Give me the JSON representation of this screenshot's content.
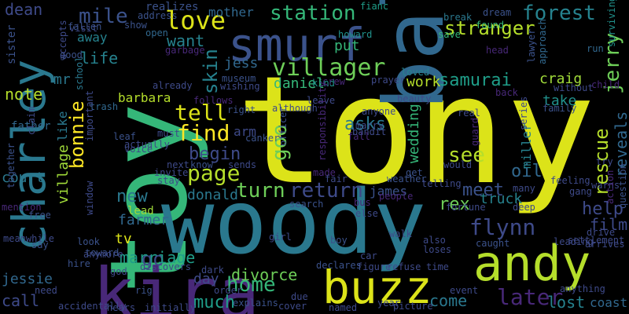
{
  "word_cloud": {
    "words": [
      {
        "text": "tony",
        "color": "#dce319"
      },
      {
        "text": "toy",
        "color": "#35b779"
      },
      {
        "text": "woody",
        "color": "#2a788e"
      },
      {
        "text": "bala",
        "color": "#31688e"
      },
      {
        "text": "smurf",
        "color": "#3b528b"
      },
      {
        "text": "charley",
        "color": "#2a788e"
      },
      {
        "text": "kira",
        "color": "#482878"
      },
      {
        "text": "andy",
        "color": "#b5de2b"
      },
      {
        "text": "buzz",
        "color": "#dce319"
      },
      {
        "text": "villager",
        "color": "#6ece58"
      },
      {
        "text": "love",
        "color": "#dce319"
      },
      {
        "text": "tell",
        "color": "#dce319"
      },
      {
        "text": "page",
        "color": "#b5de2b"
      },
      {
        "text": "find",
        "color": "#fde725"
      },
      {
        "text": "return",
        "color": "#3e4a89"
      },
      {
        "text": "turn",
        "color": "#6ece58"
      },
      {
        "text": "station",
        "color": "#35b779"
      },
      {
        "text": "stranger",
        "color": "#b5de2b"
      },
      {
        "text": "forest",
        "color": "#26828e"
      },
      {
        "text": "jerry",
        "color": "#6ece58"
      },
      {
        "text": "samurai",
        "color": "#1f9e89"
      },
      {
        "text": "rescue",
        "color": "#b5de2b"
      },
      {
        "text": "flynn",
        "color": "#3e4a89"
      },
      {
        "text": "later",
        "color": "#482878"
      },
      {
        "text": "home",
        "color": "#35b779"
      },
      {
        "text": "divorce",
        "color": "#6ece58"
      },
      {
        "text": "go",
        "color": "#3e4a89"
      },
      {
        "text": "goo",
        "color": "#6ece58"
      },
      {
        "text": "see",
        "color": "#b5de2b"
      },
      {
        "text": "meet",
        "color": "#3b528b"
      },
      {
        "text": "mile",
        "color": "#3b528b"
      },
      {
        "text": "skin",
        "color": "#26828e"
      },
      {
        "text": "begin",
        "color": "#3e4a89"
      },
      {
        "text": "new",
        "color": "#2a788e"
      },
      {
        "text": "bonnie",
        "color": "#fde725"
      },
      {
        "text": "village",
        "color": "#a0da39"
      },
      {
        "text": "marriage",
        "color": "#1f9e89"
      },
      {
        "text": "help",
        "color": "#3e4a89"
      },
      {
        "text": "film",
        "color": "#3e4a89"
      },
      {
        "text": "coast",
        "color": "#31688e"
      },
      {
        "text": "lost",
        "color": "#26828e"
      },
      {
        "text": "come",
        "color": "#2a788e"
      },
      {
        "text": "much",
        "color": "#1f9e89"
      },
      {
        "text": "call",
        "color": "#3e4a89"
      },
      {
        "text": "jessie",
        "color": "#31688e"
      },
      {
        "text": "day",
        "color": "#3e4a89"
      },
      {
        "text": "tv",
        "color": "#dce319"
      },
      {
        "text": "lead",
        "color": "#a0da39"
      },
      {
        "text": "farmer",
        "color": "#31688e"
      },
      {
        "text": "donald",
        "color": "#2a788e"
      },
      {
        "text": "work",
        "color": "#b5de2b"
      },
      {
        "text": "wedding",
        "color": "#35b779"
      },
      {
        "text": "asks",
        "color": "#2a788e"
      },
      {
        "text": "daniel",
        "color": "#35b779"
      },
      {
        "text": "jess",
        "color": "#31688e"
      },
      {
        "text": "put",
        "color": "#35b779"
      },
      {
        "text": "want",
        "color": "#26828e"
      },
      {
        "text": "mother",
        "color": "#31688e"
      },
      {
        "text": "note",
        "color": "#b5de2b"
      },
      {
        "text": "life",
        "color": "#26828e"
      },
      {
        "text": "mr",
        "color": "#2a788e"
      },
      {
        "text": "barbara",
        "color": "#b5de2b"
      },
      {
        "text": "dean",
        "color": "#3e4a89"
      },
      {
        "text": "craig",
        "color": "#a0da39"
      },
      {
        "text": "take",
        "color": "#21918c"
      },
      {
        "text": "reveals",
        "color": "#31688e"
      },
      {
        "text": "oil",
        "color": "#31688e"
      },
      {
        "text": "miller",
        "color": "#26828e"
      },
      {
        "text": "rex",
        "color": "#6ece58"
      },
      {
        "text": "james",
        "color": "#3b528b"
      },
      {
        "text": "truck",
        "color": "#26828e"
      },
      {
        "text": "realizes",
        "color": "#3b528b"
      },
      {
        "text": "away",
        "color": "#26828e"
      },
      {
        "text": "father",
        "color": "#31688e"
      },
      {
        "text": "court",
        "color": "#2a788e"
      },
      {
        "text": "like",
        "color": "#2a788e"
      },
      {
        "text": "sister",
        "color": "#3b528b"
      },
      {
        "text": "arm",
        "color": "#3e4a89"
      },
      {
        "text": "fianc",
        "color": "#1f9e89"
      },
      {
        "text": "found",
        "color": "#35b779"
      },
      {
        "text": "save",
        "color": "#35b779"
      },
      {
        "text": "surviving",
        "color": "#21918c"
      },
      {
        "text": "dream",
        "color": "#3b528b"
      },
      {
        "text": "break",
        "color": "#2a788e"
      },
      {
        "text": "address",
        "color": "#3b528b"
      },
      {
        "text": "visit",
        "color": "#3e4a89"
      },
      {
        "text": "fallen",
        "color": "#3b528b"
      },
      {
        "text": "show",
        "color": "#3b528b"
      },
      {
        "text": "open",
        "color": "#31688e"
      },
      {
        "text": "howard",
        "color": "#21918c"
      },
      {
        "text": "head",
        "color": "#482878"
      },
      {
        "text": "run",
        "color": "#31688e"
      },
      {
        "text": "lawyer",
        "color": "#3b528b"
      },
      {
        "text": "approach",
        "color": "#31688e"
      },
      {
        "text": "garbage",
        "color": "#482878"
      },
      {
        "text": "museum",
        "color": "#3b528b"
      },
      {
        "text": "wishing",
        "color": "#3e4a89"
      },
      {
        "text": "prayer",
        "color": "#3e4a89"
      },
      {
        "text": "loved",
        "color": "#26828e"
      },
      {
        "text": "beauty",
        "color": "#3e4a89"
      },
      {
        "text": "kind",
        "color": "#21918c"
      },
      {
        "text": "crew",
        "color": "#482878"
      },
      {
        "text": "good",
        "color": "#3b528b"
      },
      {
        "text": "accepts",
        "color": "#3e4a89"
      },
      {
        "text": "school",
        "color": "#2a788e"
      },
      {
        "text": "already",
        "color": "#3e4a89"
      },
      {
        "text": "follows",
        "color": "#482878"
      },
      {
        "text": "trash",
        "color": "#31688e"
      },
      {
        "text": "child",
        "color": "#482878"
      },
      {
        "text": "without",
        "color": "#3e4a89"
      },
      {
        "text": "family",
        "color": "#3b528b"
      },
      {
        "text": "back",
        "color": "#482878"
      },
      {
        "text": "together",
        "color": "#3b528b"
      },
      {
        "text": "claim",
        "color": "#3e4a89"
      },
      {
        "text": "important",
        "color": "#3e4a89"
      },
      {
        "text": "leaf",
        "color": "#3b528b"
      },
      {
        "text": "actually",
        "color": "#3e4a89"
      },
      {
        "text": "voice",
        "color": "#3e4a89"
      },
      {
        "text": "must",
        "color": "#3e4a89"
      },
      {
        "text": "right",
        "color": "#3b528b"
      },
      {
        "text": "although",
        "color": "#3e4a89"
      },
      {
        "text": "leave",
        "color": "#3e4a89"
      },
      {
        "text": "anyone",
        "color": "#3e4a89"
      },
      {
        "text": "real",
        "color": "#3e4a89"
      },
      {
        "text": "fall",
        "color": "#482878"
      },
      {
        "text": "marry",
        "color": "#3e4a89"
      },
      {
        "text": "bandit",
        "color": "#3e4a89"
      },
      {
        "text": "responsibility",
        "color": "#482878"
      },
      {
        "text": "officer",
        "color": "#3b528b"
      },
      {
        "text": "canker",
        "color": "#3b528b"
      },
      {
        "text": "sends",
        "color": "#3e4a89"
      },
      {
        "text": "next",
        "color": "#3e4a89"
      },
      {
        "text": "know",
        "color": "#3b528b"
      },
      {
        "text": "invite",
        "color": "#3e4a89"
      },
      {
        "text": "stay",
        "color": "#3e4a89"
      },
      {
        "text": "get",
        "color": "#3b528b"
      },
      {
        "text": "made",
        "color": "#482878"
      },
      {
        "text": "would",
        "color": "#3e4a89"
      },
      {
        "text": "guard",
        "color": "#482878"
      },
      {
        "text": "series",
        "color": "#3e4a89"
      },
      {
        "text": "try",
        "color": "#3e4a89"
      },
      {
        "text": "warns",
        "color": "#3e4a89"
      },
      {
        "text": "question",
        "color": "#3b528b"
      },
      {
        "text": "action",
        "color": "#482878"
      },
      {
        "text": "feeling",
        "color": "#3e4a89"
      },
      {
        "text": "gang",
        "color": "#3e4a89"
      },
      {
        "text": "many",
        "color": "#3e4a89"
      },
      {
        "text": "weather",
        "color": "#3b528b"
      },
      {
        "text": "telling",
        "color": "#3e4a89"
      },
      {
        "text": "fair",
        "color": "#3e4a89"
      },
      {
        "text": "mention",
        "color": "#482878"
      },
      {
        "text": "window",
        "color": "#3e4a89"
      },
      {
        "text": "search",
        "color": "#3b528b"
      },
      {
        "text": "bus",
        "color": "#482878"
      },
      {
        "text": "people",
        "color": "#482878"
      },
      {
        "text": "fortune",
        "color": "#3e4a89"
      },
      {
        "text": "deep",
        "color": "#3e4a89"
      },
      {
        "text": "settlement",
        "color": "#3e4a89"
      },
      {
        "text": "free",
        "color": "#3b528b"
      },
      {
        "text": "else",
        "color": "#3e4a89"
      },
      {
        "text": "meanwhile",
        "color": "#3e4a89"
      },
      {
        "text": "say",
        "color": "#3b528b"
      },
      {
        "text": "look",
        "color": "#3b528b"
      },
      {
        "text": "toward",
        "color": "#3b528b"
      },
      {
        "text": "anymore",
        "color": "#3e4a89"
      },
      {
        "text": "girl",
        "color": "#3e4a89"
      },
      {
        "text": "boy",
        "color": "#3b528b"
      },
      {
        "text": "walk",
        "color": "#3e4a89"
      },
      {
        "text": "also",
        "color": "#3e4a89"
      },
      {
        "text": "loses",
        "color": "#3e4a89"
      },
      {
        "text": "caught",
        "color": "#3b528b"
      },
      {
        "text": "leading",
        "color": "#3e4a89"
      },
      {
        "text": "drive",
        "color": "#3e4a89"
      },
      {
        "text": "arrives",
        "color": "#3e4a89"
      },
      {
        "text": "hire",
        "color": "#3b528b"
      },
      {
        "text": "discovers",
        "color": "#3e4a89"
      },
      {
        "text": "god",
        "color": "#3e4a89"
      },
      {
        "text": "car",
        "color": "#3e4a89"
      },
      {
        "text": "figure",
        "color": "#3e4a89"
      },
      {
        "text": "refuse",
        "color": "#3e4a89"
      },
      {
        "text": "time",
        "color": "#3e4a89"
      },
      {
        "text": "dark",
        "color": "#3e4a89"
      },
      {
        "text": "declares",
        "color": "#3b528b"
      },
      {
        "text": "need",
        "color": "#3e4a89"
      },
      {
        "text": "rig",
        "color": "#3b528b"
      },
      {
        "text": "due",
        "color": "#3e4a89"
      },
      {
        "text": "order",
        "color": "#3e4a89"
      },
      {
        "text": "cover",
        "color": "#3e4a89"
      },
      {
        "text": "event",
        "color": "#3e4a89"
      },
      {
        "text": "anything",
        "color": "#3e4a89"
      },
      {
        "text": "accidentally",
        "color": "#3e4a89"
      },
      {
        "text": "hears",
        "color": "#3e4a89"
      },
      {
        "text": "initially",
        "color": "#3e4a89"
      },
      {
        "text": "named",
        "color": "#3e4a89"
      },
      {
        "text": "year",
        "color": "#3e4a89"
      },
      {
        "text": "picture",
        "color": "#3e4a89"
      },
      {
        "text": "explains",
        "color": "#3b528b"
      }
    ]
  }
}
